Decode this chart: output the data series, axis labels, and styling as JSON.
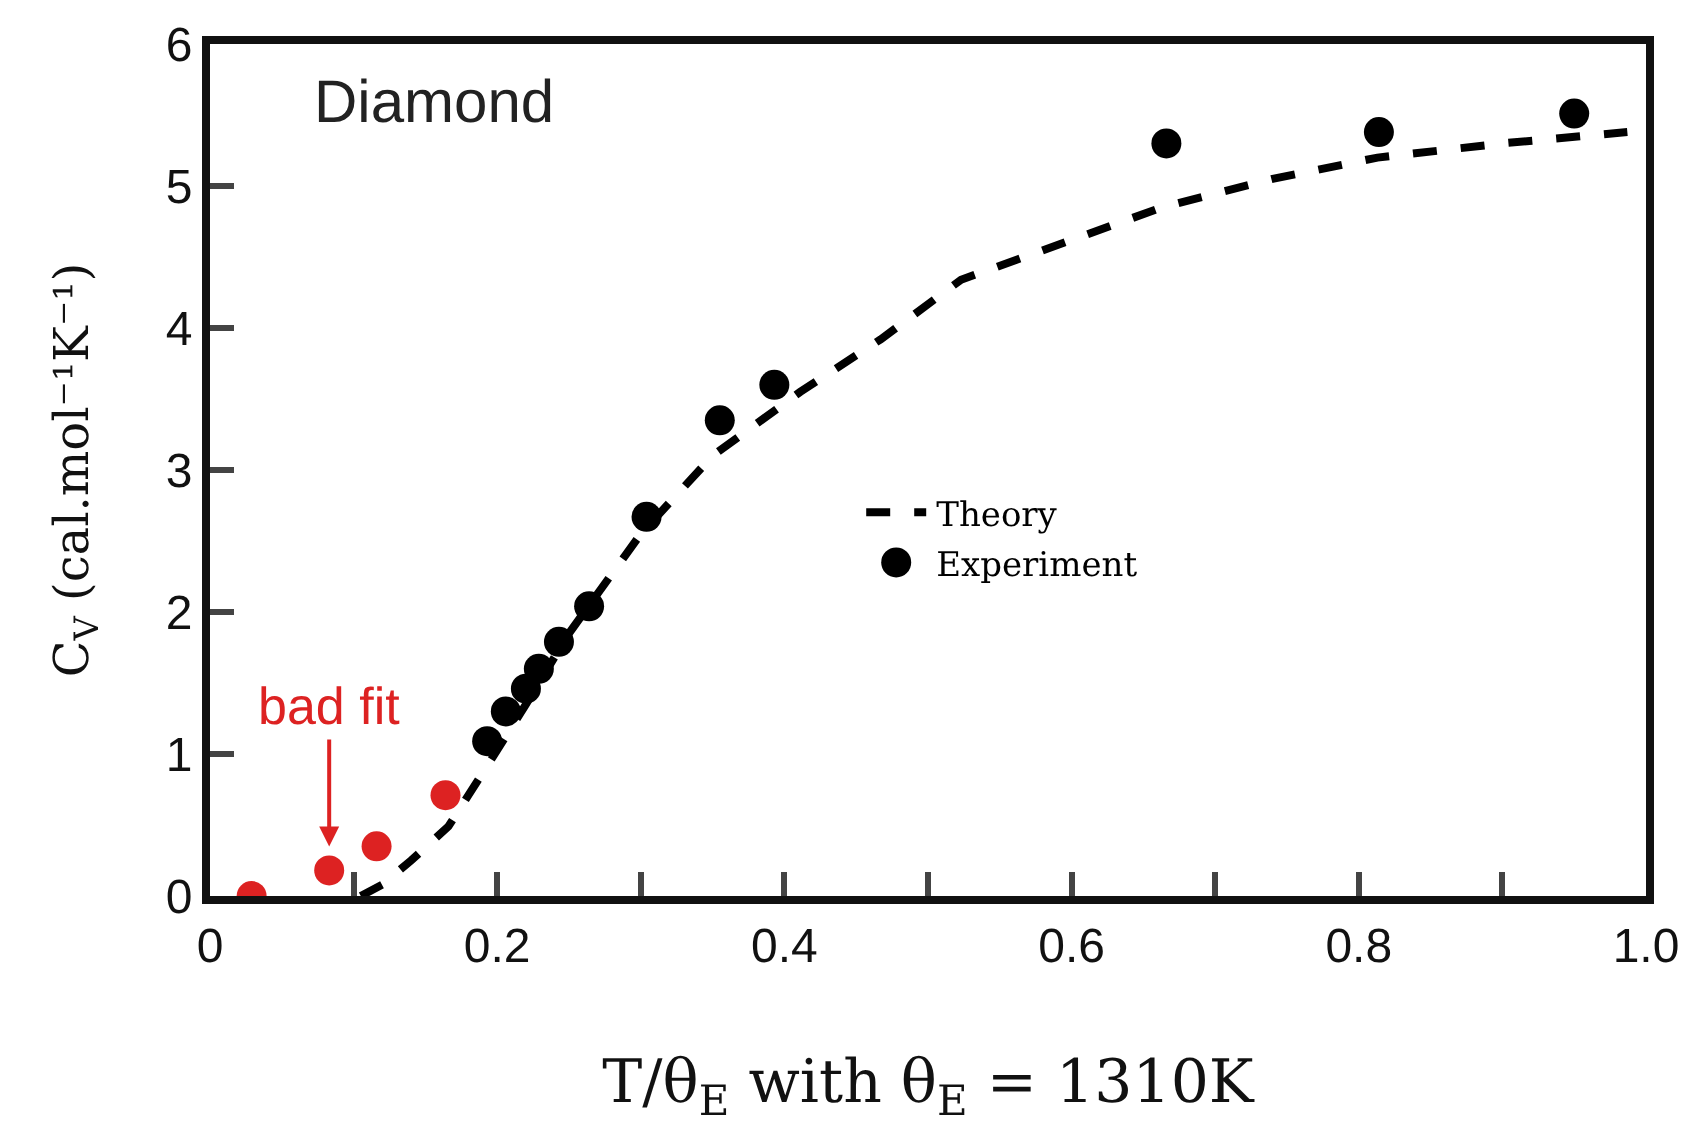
{
  "chart_data": {
    "type": "scatter",
    "xlabel": "T/θ$_{E}$ with θ$_{E}$ = 1310K",
    "ylabel": "C$_{V}$ (cal.mol⁻¹K⁻¹)",
    "annotations": [
      "Diamond",
      {
        "text": "bad fit",
        "x": 0.083,
        "y": 0.18
      }
    ],
    "xlim": [
      0,
      1.0
    ],
    "xticks": [
      0,
      {
        "value": 0.1,
        "label": null
      },
      0.2,
      {
        "value": 0.3,
        "label": null
      },
      0.4,
      {
        "value": 0.5,
        "label": null
      },
      0.6,
      {
        "value": 0.7,
        "label": null
      },
      0.8,
      {
        "value": 0.9,
        "label": null
      },
      {
        "value": 1.0,
        "label": "1.0"
      }
    ],
    "ylim": [
      0,
      6
    ],
    "yticks": [
      0,
      1,
      2,
      3,
      4,
      5,
      6
    ],
    "grid": false,
    "legend": "right",
    "series": [
      {
        "name": "Theory",
        "type": "line",
        "line_style": "dashed",
        "color": "#000000",
        "x": [
          0.105,
          0.12,
          0.14,
          0.166,
          0.192,
          0.22,
          0.25,
          0.3,
          0.35,
          0.411,
          0.467,
          0.523,
          0.6,
          0.663,
          0.74,
          0.813,
          0.9,
          0.987
        ],
        "values": [
          0,
          0.08,
          0.25,
          0.49,
          0.9,
          1.35,
          1.85,
          2.55,
          3.1,
          3.55,
          3.92,
          4.34,
          4.62,
          4.85,
          5.05,
          5.2,
          5.3,
          5.38
        ]
      },
      {
        "name": "Experiment",
        "marker": "circle",
        "color": "#000000",
        "x": [
          0.029,
          0.083,
          0.116,
          0.164,
          0.193,
          0.206,
          0.22,
          0.229,
          0.243,
          0.264,
          0.304,
          0.355,
          0.393,
          0.666,
          0.814,
          0.95
        ],
        "values": [
          0,
          0.18,
          0.35,
          0.71,
          1.09,
          1.3,
          1.46,
          1.6,
          1.79,
          2.04,
          2.67,
          3.35,
          3.6,
          5.3,
          5.38,
          5.51
        ],
        "colors": [
          "#dd2222",
          "#dd2222",
          "#dd2222",
          "#dd2222",
          "#000000",
          "#000000",
          "#000000",
          "#000000",
          "#000000",
          "#000000",
          "#000000",
          "#000000",
          "#000000",
          "#000000",
          "#000000",
          "#000000"
        ]
      }
    ]
  }
}
